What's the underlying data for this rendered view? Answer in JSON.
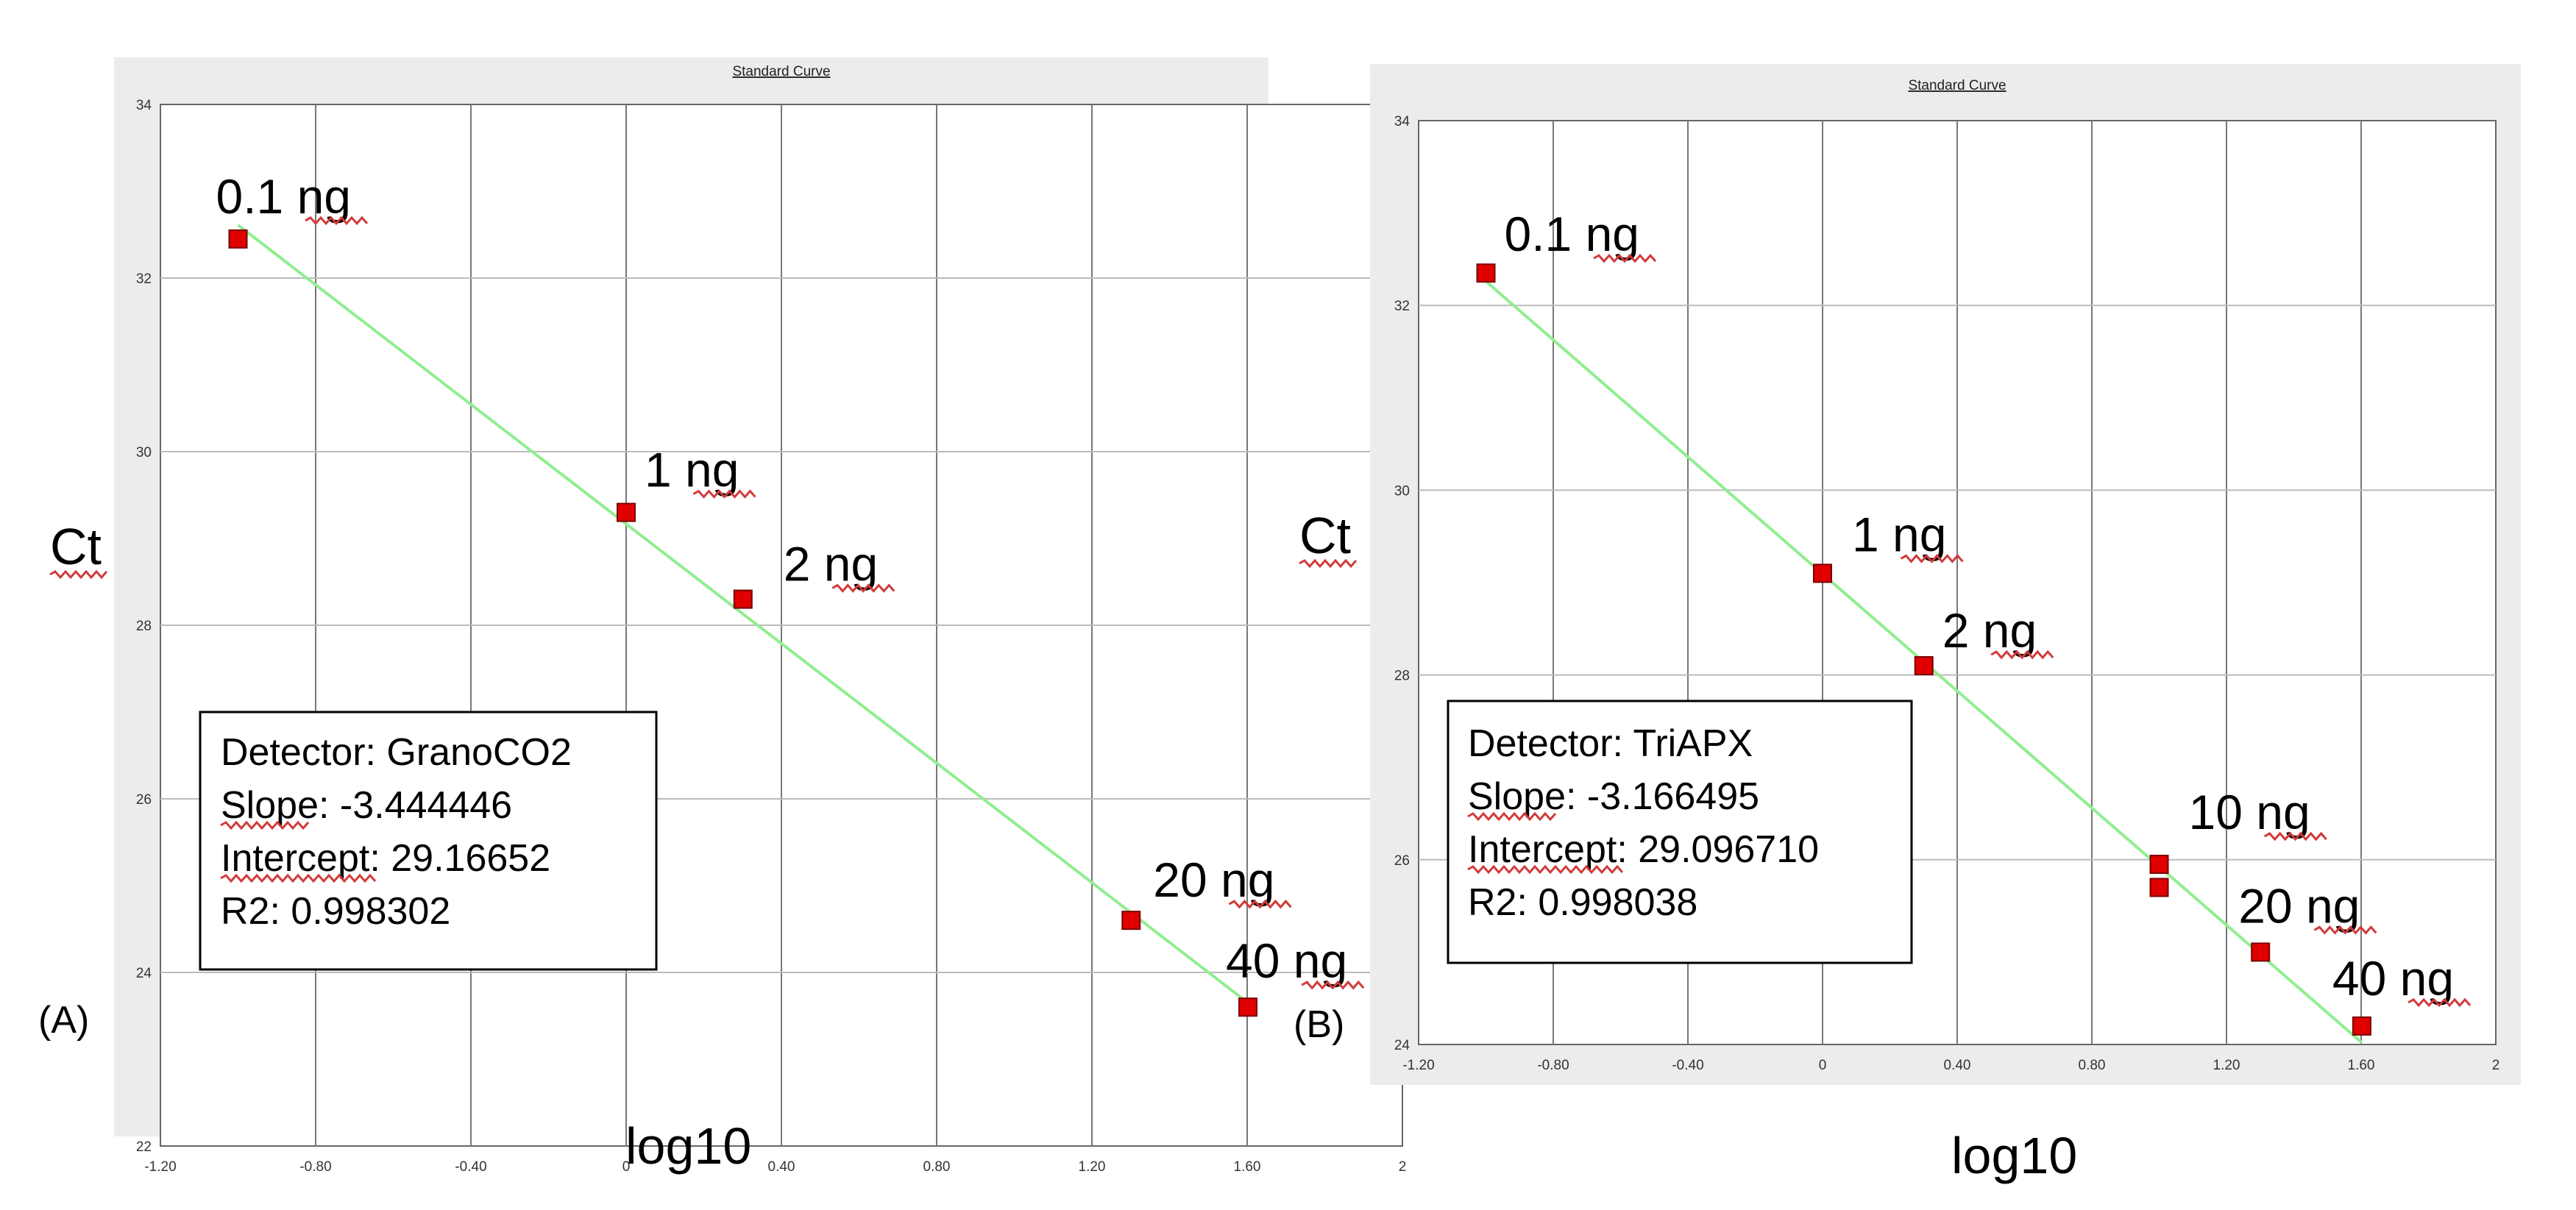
{
  "chart_data": [
    {
      "type": "scatter",
      "panel_label": "(A)",
      "title": "Standard Curve",
      "xlabel": "log10",
      "ylabel": "Ct",
      "xlim": [
        -1.2,
        2
      ],
      "ylim": [
        22,
        34
      ],
      "x_ticks": [
        "-1.20",
        "-0.80",
        "-0.40",
        "0",
        "0.40",
        "0.80",
        "1.20",
        "1.60",
        "2"
      ],
      "y_ticks": [
        "22",
        "24",
        "26",
        "28",
        "30",
        "32",
        "34"
      ],
      "grid": true,
      "points": [
        {
          "x": -1.0,
          "y": 32.45,
          "label": "0.1 ng"
        },
        {
          "x": 0.0,
          "y": 29.3,
          "label": "1 ng"
        },
        {
          "x": 0.301,
          "y": 28.3,
          "label": "2 ng"
        },
        {
          "x": 1.301,
          "y": 24.6,
          "label": "20 ng"
        },
        {
          "x": 1.602,
          "y": 23.6,
          "label": "40 ng"
        }
      ],
      "fit_line": {
        "x": [
          -1.0,
          1.602
        ],
        "y": [
          32.61,
          23.65
        ]
      },
      "stats_box": [
        "Detector: GranoCO2",
        "Slope: -3.444446",
        "Intercept: 29.16652",
        "R2: 0.998302"
      ],
      "colors": {
        "points": "#e00000",
        "line": "#90ee90"
      }
    },
    {
      "type": "scatter",
      "panel_label": "(B)",
      "title": "Standard Curve",
      "xlabel": "log10",
      "ylabel": "Ct",
      "xlim": [
        -1.2,
        2
      ],
      "ylim": [
        24,
        34
      ],
      "x_ticks": [
        "-1.20",
        "-0.80",
        "-0.40",
        "0",
        "0.40",
        "0.80",
        "1.20",
        "1.60",
        "2"
      ],
      "y_ticks": [
        "24",
        "26",
        "28",
        "30",
        "32",
        "34"
      ],
      "grid": true,
      "points": [
        {
          "x": -1.0,
          "y": 32.35,
          "label": "0.1 ng"
        },
        {
          "x": 0.0,
          "y": 29.1,
          "label": "1 ng"
        },
        {
          "x": 0.301,
          "y": 28.1,
          "label": "2 ng"
        },
        {
          "x": 1.0,
          "y": 25.95,
          "label": "10 ng"
        },
        {
          "x": 1.0,
          "y": 25.7,
          "label": ""
        },
        {
          "x": 1.301,
          "y": 25.0,
          "label": "20 ng"
        },
        {
          "x": 1.602,
          "y": 24.2,
          "label": "40 ng"
        }
      ],
      "fit_line": {
        "x": [
          -1.0,
          1.602
        ],
        "y": [
          32.26,
          24.02
        ]
      },
      "stats_box": [
        "Detector: TriAPX",
        "Slope: -3.166495",
        "Intercept: 29.096710",
        "R2: 0.998038"
      ],
      "colors": {
        "points": "#e00000",
        "line": "#90ee90"
      }
    }
  ]
}
